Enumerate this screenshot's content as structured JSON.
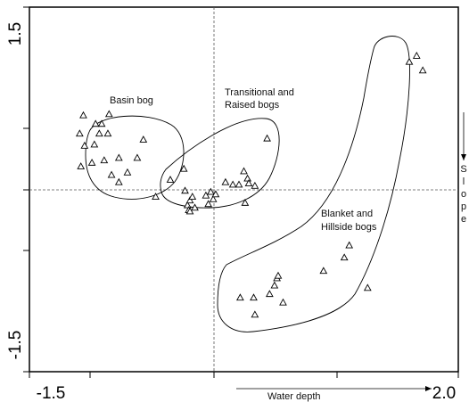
{
  "chart_data": {
    "type": "scatter",
    "title": "",
    "xlim": [
      -1.5,
      2.0
    ],
    "ylim": [
      -1.5,
      1.5
    ],
    "x_tick_labels": [
      "-1.5",
      "2.0"
    ],
    "y_tick_labels": [
      "1.5",
      "-1.5"
    ],
    "xlabel": "Water depth",
    "ylabel": "Slope",
    "grid": false,
    "reference_lines": {
      "x": 0,
      "y": 0
    },
    "marker": "open-triangle",
    "groups": [
      {
        "label": "Basin bog",
        "label_lines": [
          "Basin bog"
        ]
      },
      {
        "label": "Transitional and Raised bogs",
        "label_lines": [
          "Transitional and",
          "Raised bogs"
        ]
      },
      {
        "label": "Blanket and Hillside bogs",
        "label_lines": [
          "Blanket and",
          "Hillside bogs"
        ]
      }
    ],
    "points": [
      {
        "x": -1.09,
        "y": 0.46
      },
      {
        "x": -1.08,
        "y": 0.19
      },
      {
        "x": -1.06,
        "y": 0.61
      },
      {
        "x": -1.05,
        "y": 0.36
      },
      {
        "x": -0.99,
        "y": 0.22
      },
      {
        "x": -0.97,
        "y": 0.37
      },
      {
        "x": -0.96,
        "y": 0.54
      },
      {
        "x": -0.93,
        "y": 0.46
      },
      {
        "x": -0.91,
        "y": 0.54
      },
      {
        "x": -0.89,
        "y": 0.24
      },
      {
        "x": -0.86,
        "y": 0.46
      },
      {
        "x": -0.85,
        "y": 0.62
      },
      {
        "x": -0.83,
        "y": 0.12
      },
      {
        "x": -0.77,
        "y": 0.26
      },
      {
        "x": -0.77,
        "y": 0.06
      },
      {
        "x": -0.7,
        "y": 0.14
      },
      {
        "x": -0.62,
        "y": 0.26
      },
      {
        "x": -0.57,
        "y": 0.41
      },
      {
        "x": -0.47,
        "y": -0.06
      },
      {
        "x": -0.35,
        "y": 0.08
      },
      {
        "x": -0.24,
        "y": 0.17
      },
      {
        "x": -0.23,
        "y": -0.01
      },
      {
        "x": -0.21,
        "y": -0.13
      },
      {
        "x": -0.2,
        "y": -0.17
      },
      {
        "x": -0.19,
        "y": -0.09
      },
      {
        "x": -0.19,
        "y": -0.18
      },
      {
        "x": -0.17,
        "y": -0.06
      },
      {
        "x": -0.15,
        "y": -0.15
      },
      {
        "x": -0.06,
        "y": -0.05
      },
      {
        "x": -0.04,
        "y": -0.12
      },
      {
        "x": -0.02,
        "y": -0.02
      },
      {
        "x": 0.0,
        "y": -0.08
      },
      {
        "x": 0.02,
        "y": -0.04
      },
      {
        "x": 0.1,
        "y": 0.06
      },
      {
        "x": 0.16,
        "y": 0.04
      },
      {
        "x": 0.21,
        "y": 0.04
      },
      {
        "x": 0.25,
        "y": 0.15
      },
      {
        "x": 0.26,
        "y": -0.11
      },
      {
        "x": 0.28,
        "y": 0.09
      },
      {
        "x": 0.29,
        "y": 0.05
      },
      {
        "x": 0.34,
        "y": 0.03
      },
      {
        "x": 0.44,
        "y": 0.42
      },
      {
        "x": 0.22,
        "y": -0.89
      },
      {
        "x": 0.33,
        "y": -0.89
      },
      {
        "x": 0.34,
        "y": -1.03
      },
      {
        "x": 0.46,
        "y": -0.86
      },
      {
        "x": 0.5,
        "y": -0.79
      },
      {
        "x": 0.52,
        "y": -0.73
      },
      {
        "x": 0.53,
        "y": -0.71
      },
      {
        "x": 0.57,
        "y": -0.93
      },
      {
        "x": 0.9,
        "y": -0.67
      },
      {
        "x": 1.07,
        "y": -0.56
      },
      {
        "x": 1.11,
        "y": -0.46
      },
      {
        "x": 1.26,
        "y": -0.81
      },
      {
        "x": 1.6,
        "y": 1.05
      },
      {
        "x": 1.66,
        "y": 1.1
      },
      {
        "x": 1.71,
        "y": 0.98
      }
    ]
  }
}
